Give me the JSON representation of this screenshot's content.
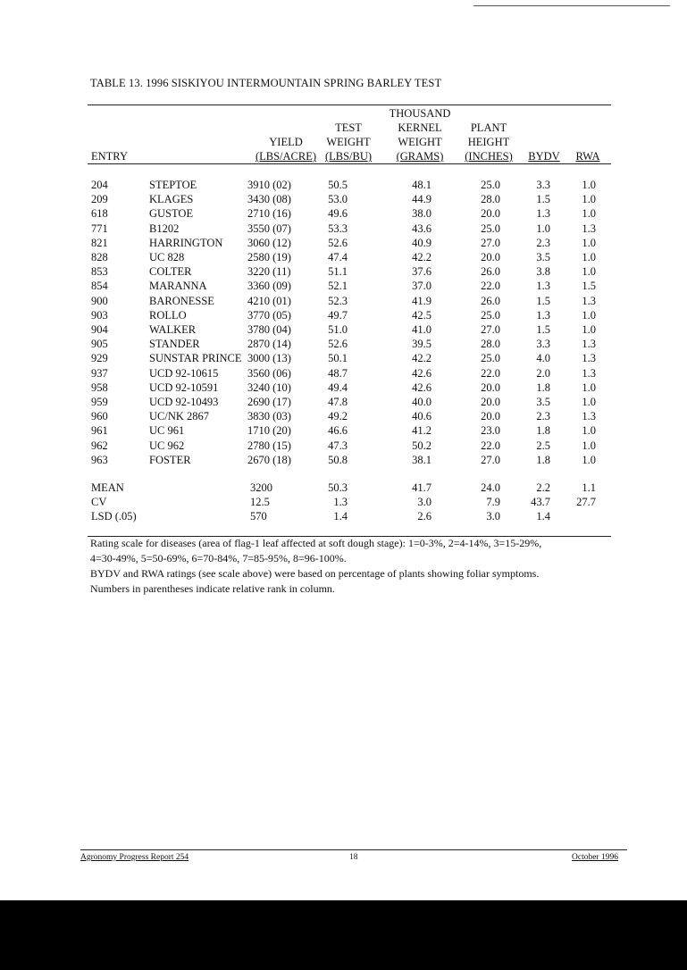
{
  "title": "TABLE 13.  1996 SISKIYOU INTERMOUNTAIN SPRING BARLEY TEST",
  "headers": {
    "entry": "ENTRY",
    "yield_1": "YIELD",
    "yield_2": "(LBS/ACRE)",
    "test_1": "TEST",
    "test_2": "WEIGHT",
    "test_3": "(LBS/BU)",
    "tkw_1": "THOUSAND",
    "tkw_2": "KERNEL",
    "tkw_3": "WEIGHT",
    "tkw_4": "(GRAMS)",
    "ph_1": "PLANT",
    "ph_2": "HEIGHT",
    "ph_3": "(INCHES)",
    "bydv": "BYDV",
    "rwa": "RWA"
  },
  "rows": [
    {
      "entry": "204",
      "name": "STEPTOE",
      "yield": "3910 (02)",
      "test_weight": "50.5",
      "kernel_weight": "48.1",
      "height": "25.0",
      "bydv": "3.3",
      "rwa": "1.0"
    },
    {
      "entry": "209",
      "name": "KLAGES",
      "yield": "3430 (08)",
      "test_weight": "53.0",
      "kernel_weight": "44.9",
      "height": "28.0",
      "bydv": "1.5",
      "rwa": "1.0"
    },
    {
      "entry": "618",
      "name": "GUSTOE",
      "yield": "2710 (16)",
      "test_weight": "49.6",
      "kernel_weight": "38.0",
      "height": "20.0",
      "bydv": "1.3",
      "rwa": "1.0"
    },
    {
      "entry": "771",
      "name": "B1202",
      "yield": "3550 (07)",
      "test_weight": "53.3",
      "kernel_weight": "43.6",
      "height": "25.0",
      "bydv": "1.0",
      "rwa": "1.3"
    },
    {
      "entry": "821",
      "name": "HARRINGTON",
      "yield": "3060 (12)",
      "test_weight": "52.6",
      "kernel_weight": "40.9",
      "height": "27.0",
      "bydv": "2.3",
      "rwa": "1.0"
    },
    {
      "entry": "828",
      "name": "UC 828",
      "yield": "2580 (19)",
      "test_weight": "47.4",
      "kernel_weight": "42.2",
      "height": "20.0",
      "bydv": "3.5",
      "rwa": "1.0"
    },
    {
      "entry": "853",
      "name": "COLTER",
      "yield": "3220 (11)",
      "test_weight": "51.1",
      "kernel_weight": "37.6",
      "height": "26.0",
      "bydv": "3.8",
      "rwa": "1.0"
    },
    {
      "entry": "854",
      "name": "MARANNA",
      "yield": "3360 (09)",
      "test_weight": "52.1",
      "kernel_weight": "37.0",
      "height": "22.0",
      "bydv": "1.3",
      "rwa": "1.5"
    },
    {
      "entry": "900",
      "name": "BARONESSE",
      "yield": "4210 (01)",
      "test_weight": "52.3",
      "kernel_weight": "41.9",
      "height": "26.0",
      "bydv": "1.5",
      "rwa": "1.3"
    },
    {
      "entry": "903",
      "name": "ROLLO",
      "yield": "3770 (05)",
      "test_weight": "49.7",
      "kernel_weight": "42.5",
      "height": "25.0",
      "bydv": "1.3",
      "rwa": "1.0"
    },
    {
      "entry": "904",
      "name": "WALKER",
      "yield": "3780 (04)",
      "test_weight": "51.0",
      "kernel_weight": "41.0",
      "height": "27.0",
      "bydv": "1.5",
      "rwa": "1.0"
    },
    {
      "entry": "905",
      "name": "STANDER",
      "yield": "2870 (14)",
      "test_weight": "52.6",
      "kernel_weight": "39.5",
      "height": "28.0",
      "bydv": "3.3",
      "rwa": "1.3"
    },
    {
      "entry": "929",
      "name": "SUNSTAR PRINCE",
      "yield": "3000 (13)",
      "test_weight": "50.1",
      "kernel_weight": "42.2",
      "height": "25.0",
      "bydv": "4.0",
      "rwa": "1.3"
    },
    {
      "entry": "937",
      "name": "UCD 92-10615",
      "yield": "3560 (06)",
      "test_weight": "48.7",
      "kernel_weight": "42.6",
      "height": "22.0",
      "bydv": "2.0",
      "rwa": "1.3"
    },
    {
      "entry": "958",
      "name": "UCD 92-10591",
      "yield": "3240 (10)",
      "test_weight": "49.4",
      "kernel_weight": "42.6",
      "height": "20.0",
      "bydv": "1.8",
      "rwa": "1.0"
    },
    {
      "entry": "959",
      "name": "UCD 92-10493",
      "yield": "2690 (17)",
      "test_weight": "47.8",
      "kernel_weight": "40.0",
      "height": "20.0",
      "bydv": "3.5",
      "rwa": "1.0"
    },
    {
      "entry": "960",
      "name": "UC/NK 2867",
      "yield": "3830 (03)",
      "test_weight": "49.2",
      "kernel_weight": "40.6",
      "height": "20.0",
      "bydv": "2.3",
      "rwa": "1.3"
    },
    {
      "entry": "961",
      "name": "UC 961",
      "yield": "1710 (20)",
      "test_weight": "46.6",
      "kernel_weight": "41.2",
      "height": "23.0",
      "bydv": "1.8",
      "rwa": "1.0"
    },
    {
      "entry": "962",
      "name": "UC 962",
      "yield": "2780 (15)",
      "test_weight": "47.3",
      "kernel_weight": "50.2",
      "height": "22.0",
      "bydv": "2.5",
      "rwa": "1.0"
    },
    {
      "entry": "963",
      "name": "FOSTER",
      "yield": "2670 (18)",
      "test_weight": "50.8",
      "kernel_weight": "38.1",
      "height": "27.0",
      "bydv": "1.8",
      "rwa": "1.0"
    }
  ],
  "summary": [
    {
      "label": "MEAN",
      "yield": "3200",
      "test_weight": "50.3",
      "kernel_weight": "41.7",
      "height": "24.0",
      "bydv": "2.2",
      "rwa": "1.1"
    },
    {
      "label": "CV",
      "yield": "12.5",
      "test_weight": "1.3",
      "kernel_weight": "3.0",
      "height": "7.9",
      "bydv": "43.7",
      "rwa": "27.7"
    },
    {
      "label": "LSD (.05)",
      "yield": "570",
      "test_weight": "1.4",
      "kernel_weight": "2.6",
      "height": "3.0",
      "bydv": "1.4",
      "rwa": ""
    }
  ],
  "notes": {
    "line1": "Rating scale for diseases (area of flag-1 leaf affected at soft dough stage): 1=0-3%, 2=4-14%, 3=15-29%,",
    "line2": "4=30-49%, 5=50-69%, 6=70-84%, 7=85-95%, 8=96-100%.",
    "line3": "BYDV and RWA ratings (see scale above) were based on percentage of plants showing foliar symptoms.",
    "line4": "Numbers in parentheses indicate relative rank in column."
  },
  "footer": {
    "left": "Agronomy Progress Report 254",
    "center": "18",
    "right": "October 1996"
  }
}
